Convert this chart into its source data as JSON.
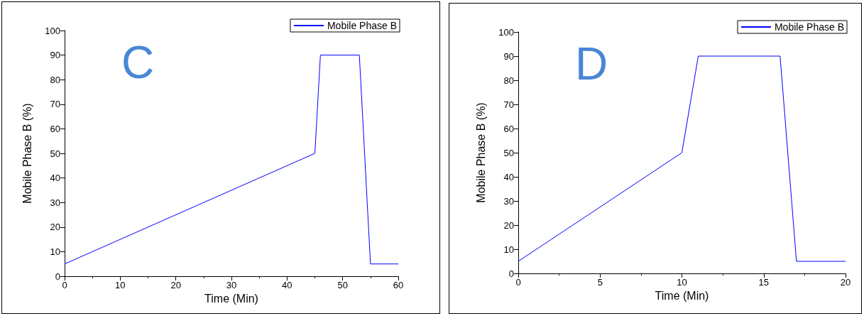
{
  "chart_data": [
    {
      "type": "line",
      "title": "C",
      "xlabel": "Time (Min)",
      "ylabel": "Mobile Phase B (%)",
      "legend": "top right",
      "grid": false,
      "marker": "none",
      "line_style": "solid",
      "xlim": [
        0,
        60
      ],
      "xticks": [
        0,
        10,
        20,
        30,
        40,
        50,
        60
      ],
      "ylim": [
        0,
        100
      ],
      "yticks": [
        0,
        10,
        20,
        30,
        40,
        50,
        60,
        70,
        80,
        90,
        100
      ],
      "series": [
        {
          "name": "Mobile Phase B",
          "color": "#0000ff",
          "x": [
            0,
            45,
            46,
            53,
            55,
            60
          ],
          "values": [
            5,
            50,
            90,
            90,
            5,
            5
          ]
        }
      ]
    },
    {
      "type": "line",
      "title": "D",
      "xlabel": "Time (Min)",
      "ylabel": "Mobile Phase B (%)",
      "legend": "top right",
      "grid": false,
      "marker": "none",
      "line_style": "solid",
      "xlim": [
        0,
        20
      ],
      "xticks": [
        0,
        5,
        10,
        15,
        20
      ],
      "ylim": [
        0,
        100
      ],
      "yticks": [
        0,
        10,
        20,
        30,
        40,
        50,
        60,
        70,
        80,
        90,
        100
      ],
      "series": [
        {
          "name": "Mobile Phase B",
          "color": "#0000ff",
          "x": [
            0,
            10,
            11,
            16,
            17,
            20
          ],
          "values": [
            5,
            50,
            90,
            90,
            5,
            5
          ]
        }
      ]
    }
  ]
}
